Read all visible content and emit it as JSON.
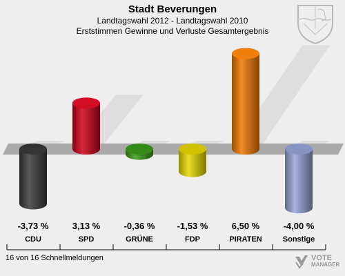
{
  "header": {
    "title": "Stadt Beverungen",
    "subtitle1": "Landtagswahl 2012 - Landtagswahl 2010",
    "subtitle2": "Erststimmen Gewinne und Verluste Gesamtergebnis"
  },
  "footer": {
    "note": "16 von 16 Schnellmeldungen",
    "logo_line1": "VOTE",
    "logo_line2": "MANAGER"
  },
  "colors": {
    "background": "#eeeeee",
    "plane": "#a9a9a9",
    "shadow": "#d4d4d4"
  },
  "icons": {
    "crest": "nrw-coat-of-arms-icon",
    "logo": "votemanager-logo-icon"
  },
  "chart_data": {
    "type": "bar",
    "categories": [
      "CDU",
      "SPD",
      "GRÜNE",
      "FDP",
      "PIRATEN",
      "Sonstige"
    ],
    "values": [
      -3.73,
      3.13,
      -0.36,
      -1.53,
      6.5,
      -4.0
    ],
    "value_labels": [
      "-3,73 %",
      "3,13 %",
      "-0,36 %",
      "-1,53 %",
      "6,50 %",
      "-4,00 %"
    ],
    "colors": [
      "#3a3a3a",
      "#d0001a",
      "#3a9a1a",
      "#e8d800",
      "#f07800",
      "#97a4d8"
    ],
    "ylim": [
      -4.5,
      7
    ],
    "grid": false,
    "legend": "none"
  }
}
